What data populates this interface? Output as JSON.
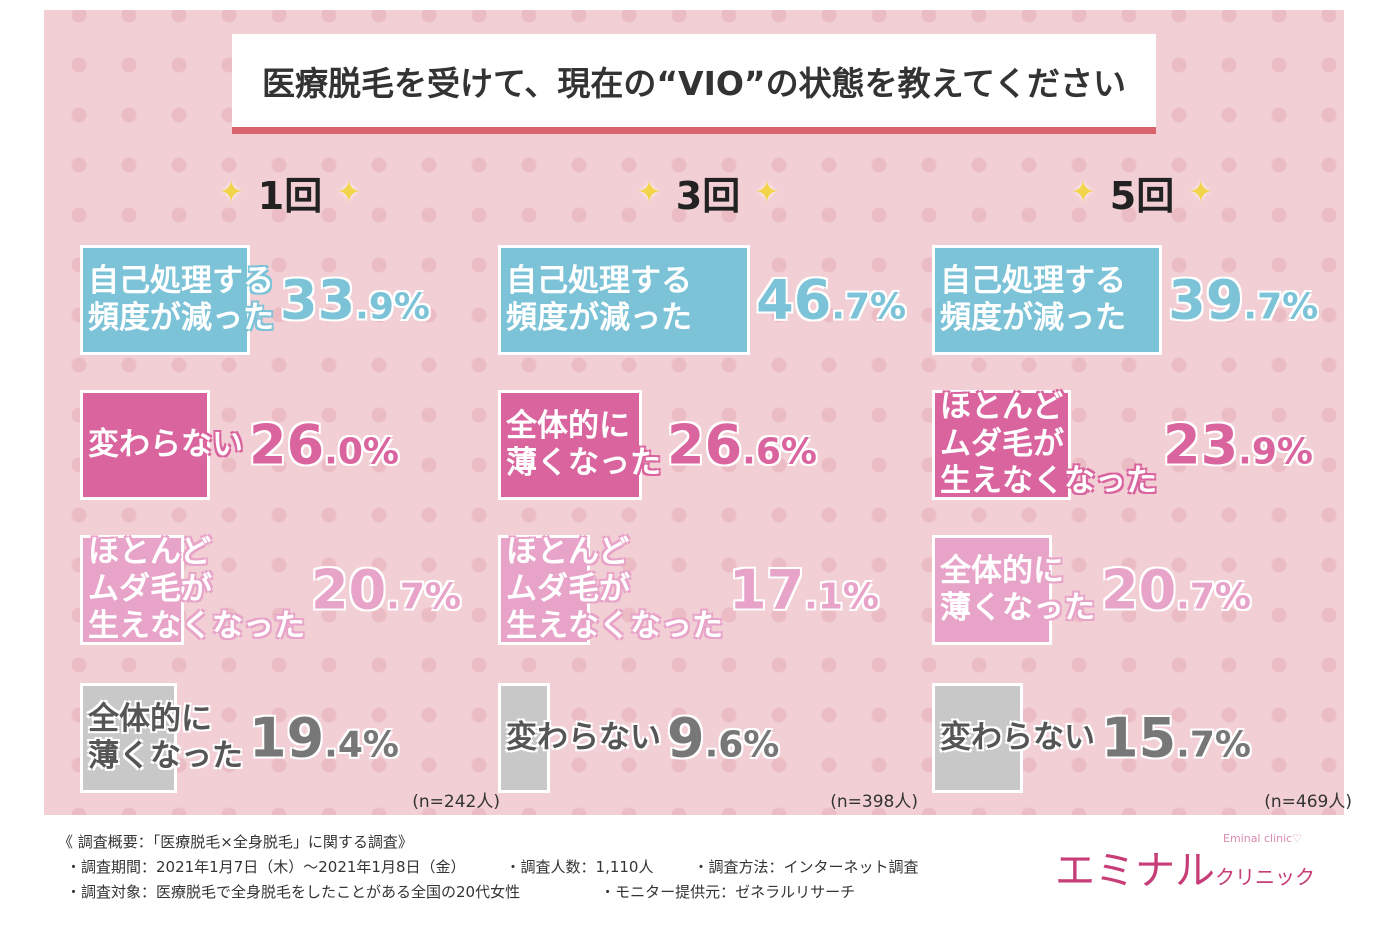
{
  "chart_data": {
    "type": "bar",
    "title": "医療脱毛を受けて、現在の“VIO”の状態を教えてください",
    "unit": "%",
    "panels": [
      {
        "heading": "1回",
        "n": "(n=242人)",
        "bars": [
          {
            "label": "自己処理する\n頻度が減った",
            "value": 33.9,
            "color": "#7cc3d8"
          },
          {
            "label": "変わらない",
            "value": 26.0,
            "color": "#d9649e"
          },
          {
            "label": "ほとんど\nムダ毛が\n生えなくなった",
            "value": 20.7,
            "color": "#e8a3c9"
          },
          {
            "label": "全体的に\n薄くなった",
            "value": 19.4,
            "color": "#c8c8c8"
          }
        ]
      },
      {
        "heading": "3回",
        "n": "(n=398人)",
        "bars": [
          {
            "label": "自己処理する\n頻度が減った",
            "value": 46.7,
            "color": "#7cc3d8"
          },
          {
            "label": "全体的に\n薄くなった",
            "value": 26.6,
            "color": "#d9649e"
          },
          {
            "label": "ほとんど\nムダ毛が\n生えなくなった",
            "value": 17.1,
            "color": "#e8a3c9"
          },
          {
            "label": "変わらない",
            "value": 9.6,
            "color": "#c8c8c8"
          }
        ]
      },
      {
        "heading": "5回",
        "n": "(n=469人)",
        "bars": [
          {
            "label": "自己処理する\n頻度が減った",
            "value": 39.7,
            "color": "#7cc3d8"
          },
          {
            "label": "ほとんど\nムダ毛が\n生えなくなった",
            "value": 23.9,
            "color": "#d9649e"
          },
          {
            "label": "全体的に\n薄くなった",
            "value": 20.7,
            "color": "#e8a3c9"
          },
          {
            "label": "変わらない",
            "value": 15.7,
            "color": "#c8c8c8"
          }
        ]
      }
    ]
  },
  "footer": {
    "summary": "《 調査概要：「医療脱毛×全身脱毛」に関する調査》",
    "period": "・調査期間：2021年1月7日（木）～2021年1月8日（金）",
    "count": "・調査人数：1,110人",
    "method": "・調査方法：インターネット調査",
    "target": "・調査対象：医療脱毛で全身脱毛をしたことがある全国の20代女性",
    "provider": "・モニター提供元：ゼネラルリサーチ"
  },
  "logo": {
    "main": "エミナル",
    "sub": "クリニック",
    "en": "Eminal clinic♡"
  }
}
